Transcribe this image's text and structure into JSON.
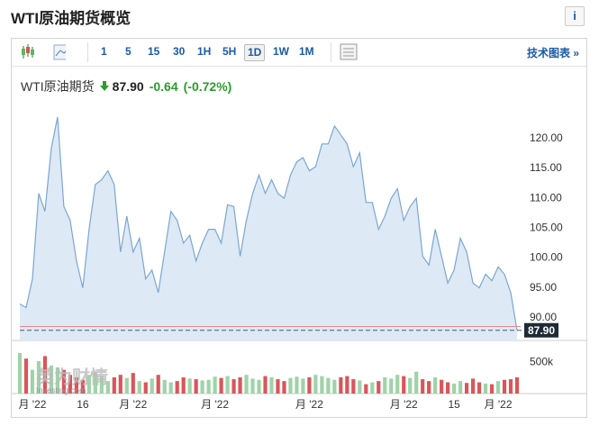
{
  "header": {
    "title": "WTI原油期货概览",
    "info": "i"
  },
  "toolbar": {
    "buttons": [
      "1",
      "5",
      "15",
      "30",
      "1H",
      "5H",
      "1D",
      "1W",
      "1M"
    ],
    "active": "1D",
    "link": "技术图表 »"
  },
  "quote": {
    "name": "WTI原油期货",
    "price": "87.90",
    "change": "-0.64",
    "change_percent": "(-0.72%)"
  },
  "chart_data": {
    "type": "area",
    "categories": [
      null,
      null,
      "月 '22",
      null,
      null,
      null,
      null,
      null,
      null,
      null,
      "16",
      null,
      null,
      null,
      null,
      null,
      null,
      null,
      "月 '22",
      null,
      null,
      null,
      null,
      null,
      null,
      null,
      null,
      null,
      null,
      null,
      null,
      "月 '22",
      null,
      null,
      null,
      null,
      null,
      null,
      null,
      null,
      null,
      null,
      null,
      null,
      null,
      null,
      "月 '22",
      null,
      null,
      null,
      null,
      null,
      null,
      null,
      null,
      null,
      null,
      null,
      null,
      null,
      null,
      "月 '22",
      null,
      null,
      null,
      null,
      null,
      null,
      null,
      "15",
      null,
      null,
      null,
      null,
      null,
      null,
      "月 '22",
      null,
      null,
      null
    ],
    "values": [
      92.3,
      91.7,
      96.5,
      110.8,
      107.8,
      118.3,
      123.6,
      108.6,
      106.3,
      99.5,
      95.0,
      104.8,
      112.3,
      113.1,
      114.6,
      112.3,
      101.0,
      107.0,
      101.0,
      103.3,
      96.5,
      98.0,
      94.2,
      101.0,
      107.8,
      106.3,
      102.5,
      103.8,
      99.5,
      102.5,
      104.8,
      104.8,
      102.5,
      108.9,
      108.6,
      100.3,
      106.3,
      110.8,
      113.9,
      110.8,
      113.1,
      110.8,
      110.0,
      113.9,
      116.1,
      116.8,
      114.6,
      115.3,
      119.1,
      119.1,
      122.1,
      120.6,
      119.1,
      115.3,
      117.6,
      109.3,
      109.3,
      104.8,
      107.0,
      110.0,
      111.6,
      106.3,
      108.6,
      110.0,
      100.3,
      98.8,
      104.8,
      100.3,
      95.8,
      98.0,
      103.3,
      101.0,
      95.8,
      95.0,
      97.3,
      96.2,
      98.5,
      97.3,
      94.2,
      87.9
    ],
    "color": "#7aa7d0",
    "fill": "#dde9f5",
    "ylim": [
      86.2,
      125.4
    ],
    "yticks": [
      {
        "value": 90,
        "label": "90.00"
      },
      {
        "value": 95,
        "label": "95.00"
      },
      {
        "value": 100,
        "label": "100.00"
      },
      {
        "value": 105,
        "label": "105.00"
      },
      {
        "value": 110,
        "label": "110.00"
      },
      {
        "value": 115,
        "label": "115.00"
      },
      {
        "value": 120,
        "label": "120.00"
      }
    ],
    "current_price": {
      "value": 87.9,
      "label": "87.90"
    },
    "reference_line": 88.54,
    "volume": {
      "values": [
        650000,
        560000,
        380000,
        520000,
        600000,
        450000,
        420000,
        380000,
        300000,
        260000,
        220000,
        300000,
        340000,
        280000,
        200000,
        260000,
        300000,
        250000,
        330000,
        200000,
        180000,
        240000,
        300000,
        220000,
        180000,
        200000,
        260000,
        240000,
        230000,
        210000,
        220000,
        270000,
        250000,
        280000,
        230000,
        260000,
        300000,
        240000,
        220000,
        280000,
        260000,
        230000,
        200000,
        250000,
        270000,
        240000,
        260000,
        300000,
        280000,
        250000,
        220000,
        260000,
        280000,
        230000,
        210000,
        150000,
        180000,
        200000,
        260000,
        240000,
        300000,
        280000,
        250000,
        350000,
        230000,
        200000,
        260000,
        220000,
        180000,
        160000,
        200000,
        170000,
        240000,
        180000,
        160000,
        150000,
        200000,
        220000,
        230000,
        260000
      ],
      "up_color": "#9fd3a8",
      "down_color": "#d9565a",
      "ylim": [
        0,
        750000
      ],
      "yticks": [
        {
          "value": 500000,
          "label": "500k"
        }
      ]
    },
    "watermark": {
      "brand": "英为财情",
      "site": "Investing.com"
    }
  }
}
